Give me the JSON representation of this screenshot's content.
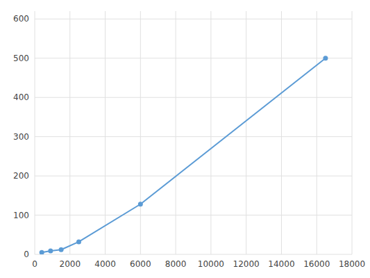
{
  "chart_data": {
    "type": "line",
    "x": [
      400,
      900,
      1500,
      2500,
      6000,
      16500
    ],
    "values": [
      5,
      9,
      12,
      32,
      128,
      500
    ],
    "color": "#5b9bd5",
    "marker": "circle",
    "xlim": [
      0,
      18000
    ],
    "ylim": [
      0,
      620
    ],
    "xticks": [
      0,
      2000,
      4000,
      6000,
      8000,
      10000,
      12000,
      14000,
      16000,
      18000
    ],
    "yticks": [
      0,
      100,
      200,
      300,
      400,
      500,
      600
    ],
    "grid": true
  }
}
